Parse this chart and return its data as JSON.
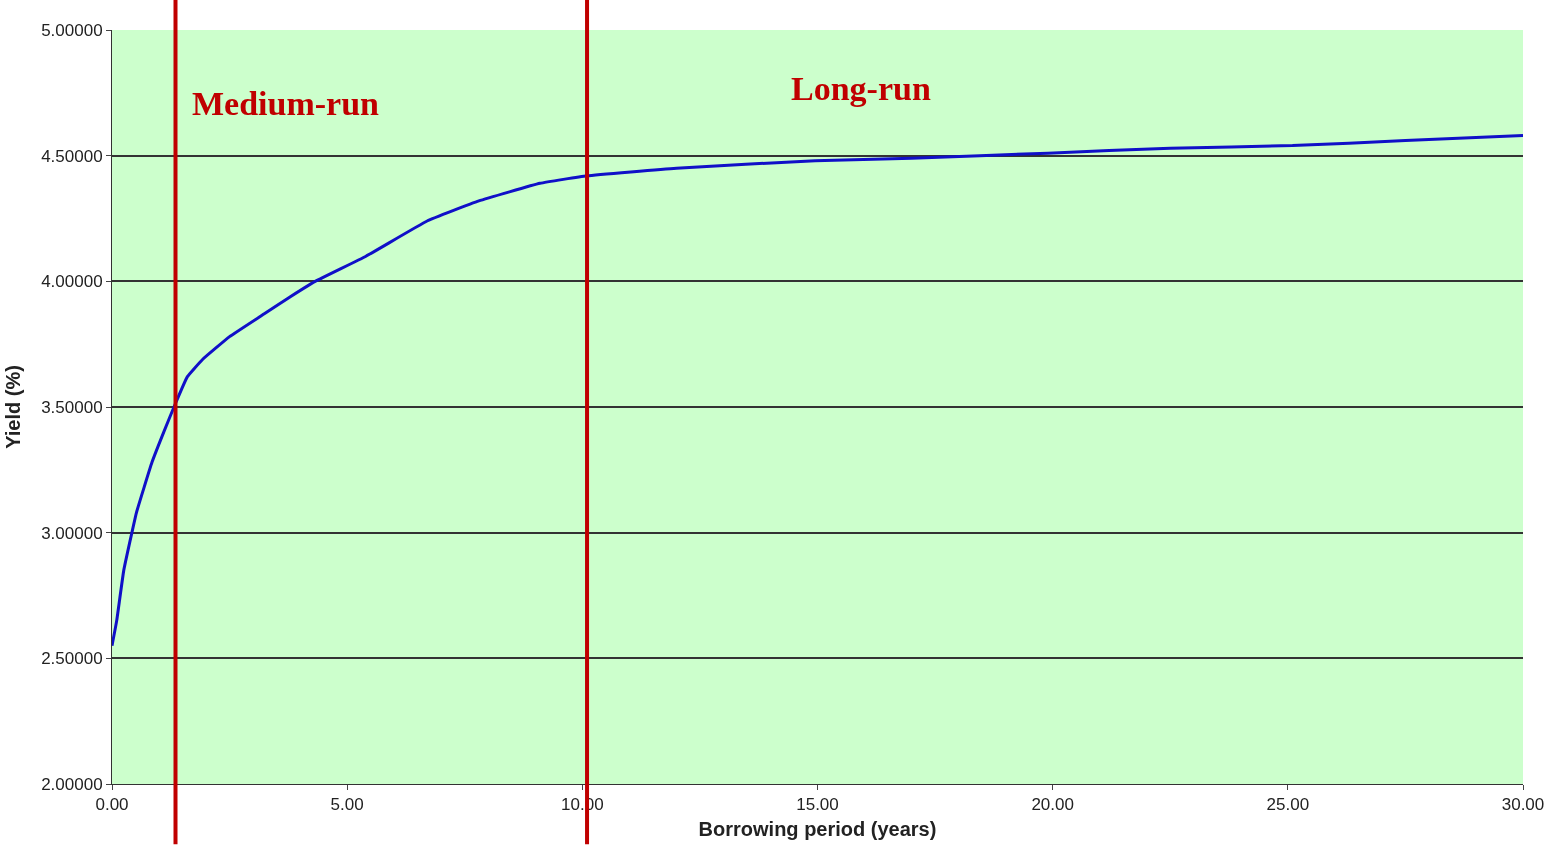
{
  "chart_data": {
    "type": "line",
    "xlabel": "Borrowing period (years)",
    "ylabel": "Yield (%)",
    "annotations": [
      "Medium-run",
      "Long-run"
    ],
    "series": [
      {
        "color": "#1010c8",
        "x": [
          0,
          0.1,
          0.25,
          0.52,
          0.85,
          1.1,
          1.34,
          1.6,
          1.93,
          2.5,
          3.23,
          3.8,
          4.32,
          5.4,
          6.7,
          7.8,
          9.1,
          10.1,
          12,
          14.95,
          17,
          19.9,
          22.5,
          25.1,
          27.5,
          30
        ],
        "values": [
          2.55,
          2.65,
          2.85,
          3.08,
          3.28,
          3.4,
          3.51,
          3.62,
          3.69,
          3.78,
          3.87,
          3.94,
          4.0,
          4.1,
          4.24,
          4.32,
          4.39,
          4.42,
          4.45,
          4.48,
          4.49,
          4.51,
          4.53,
          4.54,
          4.56,
          4.58
        ]
      }
    ],
    "xlim": [
      0,
      30
    ],
    "ylim": [
      2,
      5
    ],
    "xticks": [
      {
        "value": 0,
        "label": "0.00"
      },
      {
        "value": 5,
        "label": "5.00"
      },
      {
        "value": 10,
        "label": "10.00"
      },
      {
        "value": 15,
        "label": "15.00"
      },
      {
        "value": 20,
        "label": "20.00"
      },
      {
        "value": 25,
        "label": "25.00"
      },
      {
        "value": 30,
        "label": "30.00"
      }
    ],
    "yticks": [
      {
        "value": 2,
        "label": "2.00000"
      },
      {
        "value": 2.5,
        "label": "2.50000"
      },
      {
        "value": 3,
        "label": "3.00000"
      },
      {
        "value": 3.5,
        "label": "3.50000"
      },
      {
        "value": 4,
        "label": "4.00000"
      },
      {
        "value": 4.5,
        "label": "4.50000"
      },
      {
        "value": 5,
        "label": "5.00000"
      }
    ],
    "ref_lines": [
      {
        "axis": "x",
        "value": 1.35,
        "color": "#c00000"
      },
      {
        "axis": "x",
        "value": 10.1,
        "color": "#c00000"
      }
    ],
    "grid": "y",
    "marker": "none",
    "line_style": "solid"
  }
}
